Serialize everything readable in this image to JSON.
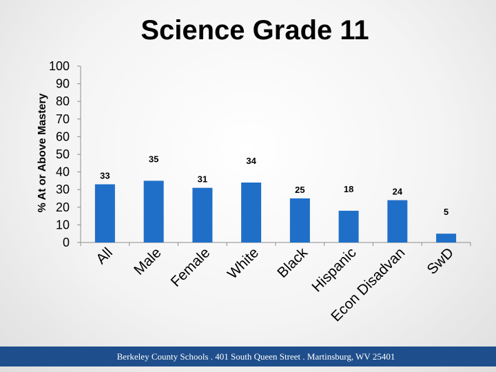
{
  "footer": {
    "text": "Berkeley County Schools . 401 South Queen Street . Martinsburg, WV  25401"
  },
  "colors": {
    "bar": "#1f6fc8",
    "footer_bg": "#1f4e8c",
    "axis": "#8c8c8c"
  },
  "chart_data": {
    "type": "bar",
    "title": "Science Grade 11",
    "xlabel": "",
    "ylabel": "% At or Above Mastery",
    "ylim": [
      0,
      100
    ],
    "yticks": [
      "0",
      "10",
      "20",
      "30",
      "40",
      "50",
      "60",
      "70",
      "80",
      "90",
      "100"
    ],
    "grid": false,
    "legend": "none",
    "categories": [
      "All",
      "Male",
      "Female",
      "White",
      "Black",
      "Hispanic",
      "Econ Disadvan",
      "SwD"
    ],
    "values": [
      33,
      35,
      31,
      34,
      25,
      18,
      24,
      5
    ],
    "data_labels": [
      "33",
      "35",
      "31",
      "34",
      "25",
      "18",
      "24",
      "5"
    ]
  }
}
